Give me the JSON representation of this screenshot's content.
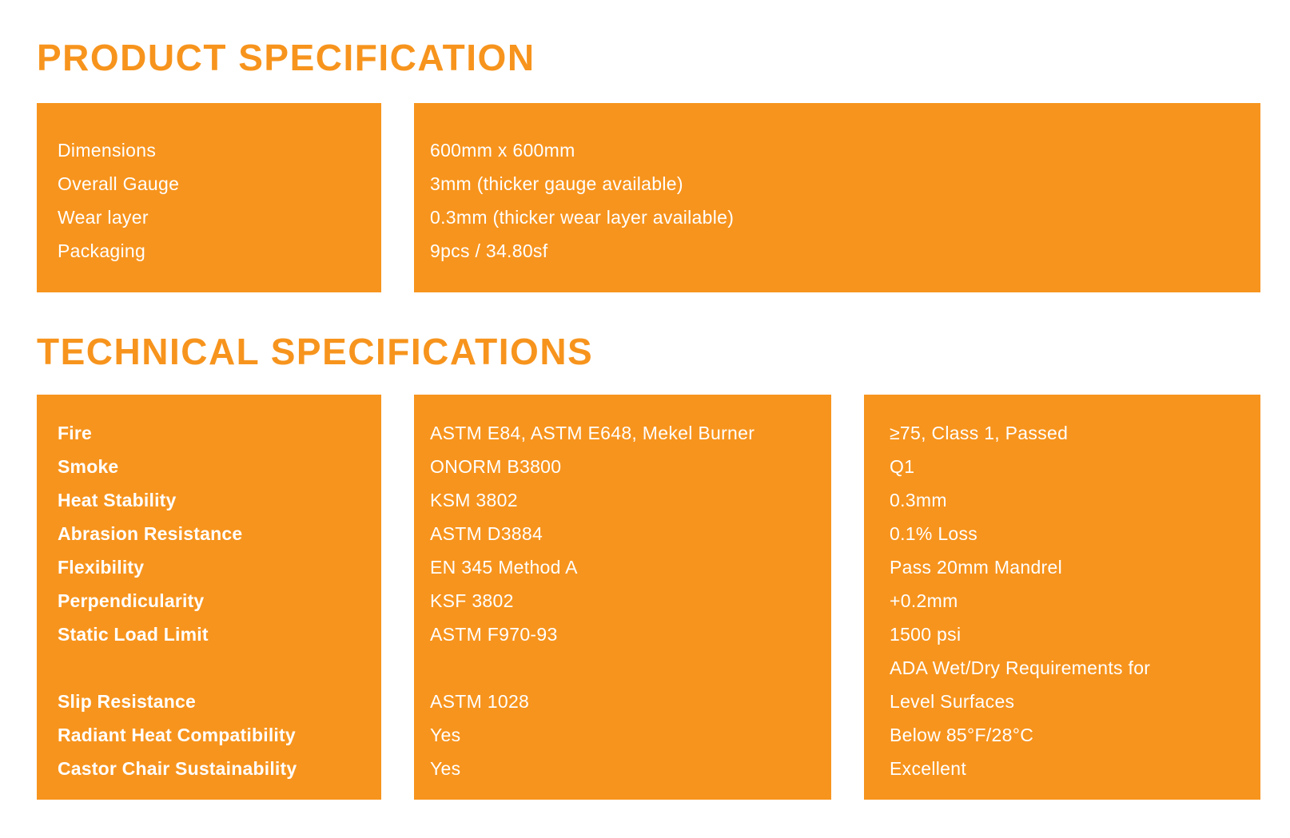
{
  "accent_color": "#F7941D",
  "product_spec": {
    "title": "PRODUCT SPECIFICATION",
    "labels": [
      "Dimensions",
      "Overall Gauge",
      "Wear layer",
      "Packaging"
    ],
    "values": [
      "600mm x 600mm",
      "3mm (thicker gauge available)",
      "0.3mm (thicker wear layer available)",
      "9pcs / 34.80sf"
    ]
  },
  "technical_spec": {
    "title": "TECHNICAL SPECIFICATIONS",
    "labels": [
      "Fire",
      "Smoke",
      "Heat Stability",
      "Abrasion Resistance",
      "Flexibility",
      "Perpendicularity",
      "Static Load Limit",
      "",
      "Slip Resistance",
      "Radiant Heat Compatibility",
      "Castor Chair Sustainability"
    ],
    "standards": [
      "ASTM E84, ASTM E648, Mekel Burner",
      "ONORM B3800",
      "KSM 3802",
      "ASTM D3884",
      "EN 345 Method A",
      "KSF 3802",
      "ASTM F970-93",
      "",
      "ASTM 1028",
      "Yes",
      "Yes"
    ],
    "results": [
      "≥75, Class 1, Passed",
      "Q1",
      "0.3mm",
      "0.1% Loss",
      "Pass 20mm Mandrel",
      "+0.2mm",
      "1500 psi",
      "ADA Wet/Dry Requirements for",
      "Level Surfaces",
      "Below 85°F/28°C",
      "Excellent"
    ]
  }
}
